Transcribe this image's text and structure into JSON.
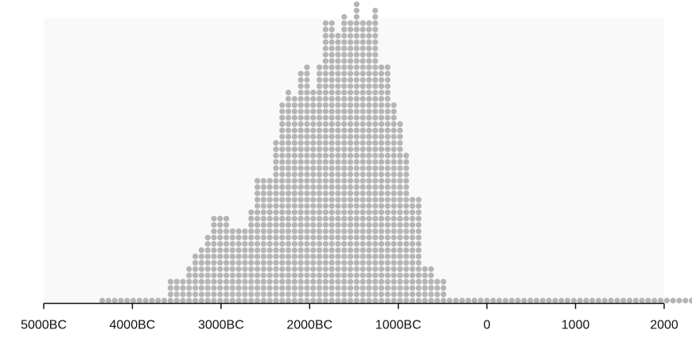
{
  "chart_data": {
    "type": "dot-histogram",
    "title": "",
    "xlabel": "",
    "ylabel": "",
    "xlim": [
      -5000,
      2000
    ],
    "bin_width": 70,
    "bin_start": -4340,
    "counts": [
      1,
      1,
      1,
      1,
      1,
      1,
      1,
      1,
      1,
      1,
      1,
      4,
      4,
      4,
      6,
      8,
      9,
      11,
      14,
      14,
      14,
      12,
      12,
      12,
      15,
      20,
      20,
      20,
      26,
      32,
      34,
      33,
      37,
      38,
      34,
      38,
      45,
      45,
      43,
      46,
      45,
      48,
      45,
      45,
      47,
      38,
      38,
      32,
      29,
      24,
      17,
      17,
      6,
      6,
      4,
      4,
      1,
      1,
      1,
      1,
      1,
      1,
      1,
      1,
      1,
      1,
      1,
      1,
      1,
      1,
      1,
      1,
      1,
      1,
      1,
      1,
      1,
      1,
      1,
      1,
      1,
      1,
      1,
      1,
      1,
      1,
      1,
      1,
      1,
      1,
      1,
      1,
      1,
      1,
      1,
      1,
      1,
      1,
      1,
      1
    ],
    "x_ticks": [
      {
        "value": -5000,
        "label": "5000BC"
      },
      {
        "value": -4000,
        "label": "4000BC"
      },
      {
        "value": -3000,
        "label": "3000BC"
      },
      {
        "value": -2000,
        "label": "2000BC"
      },
      {
        "value": -1000,
        "label": "1000BC"
      },
      {
        "value": 0,
        "label": "0"
      },
      {
        "value": 1000,
        "label": "1000"
      },
      {
        "value": 2000,
        "label": "2000"
      }
    ],
    "grid": false,
    "legend": "none",
    "colors": {
      "dot": "#b5b5b5",
      "panel": "#f9f9f9",
      "axis": "#111111"
    }
  }
}
